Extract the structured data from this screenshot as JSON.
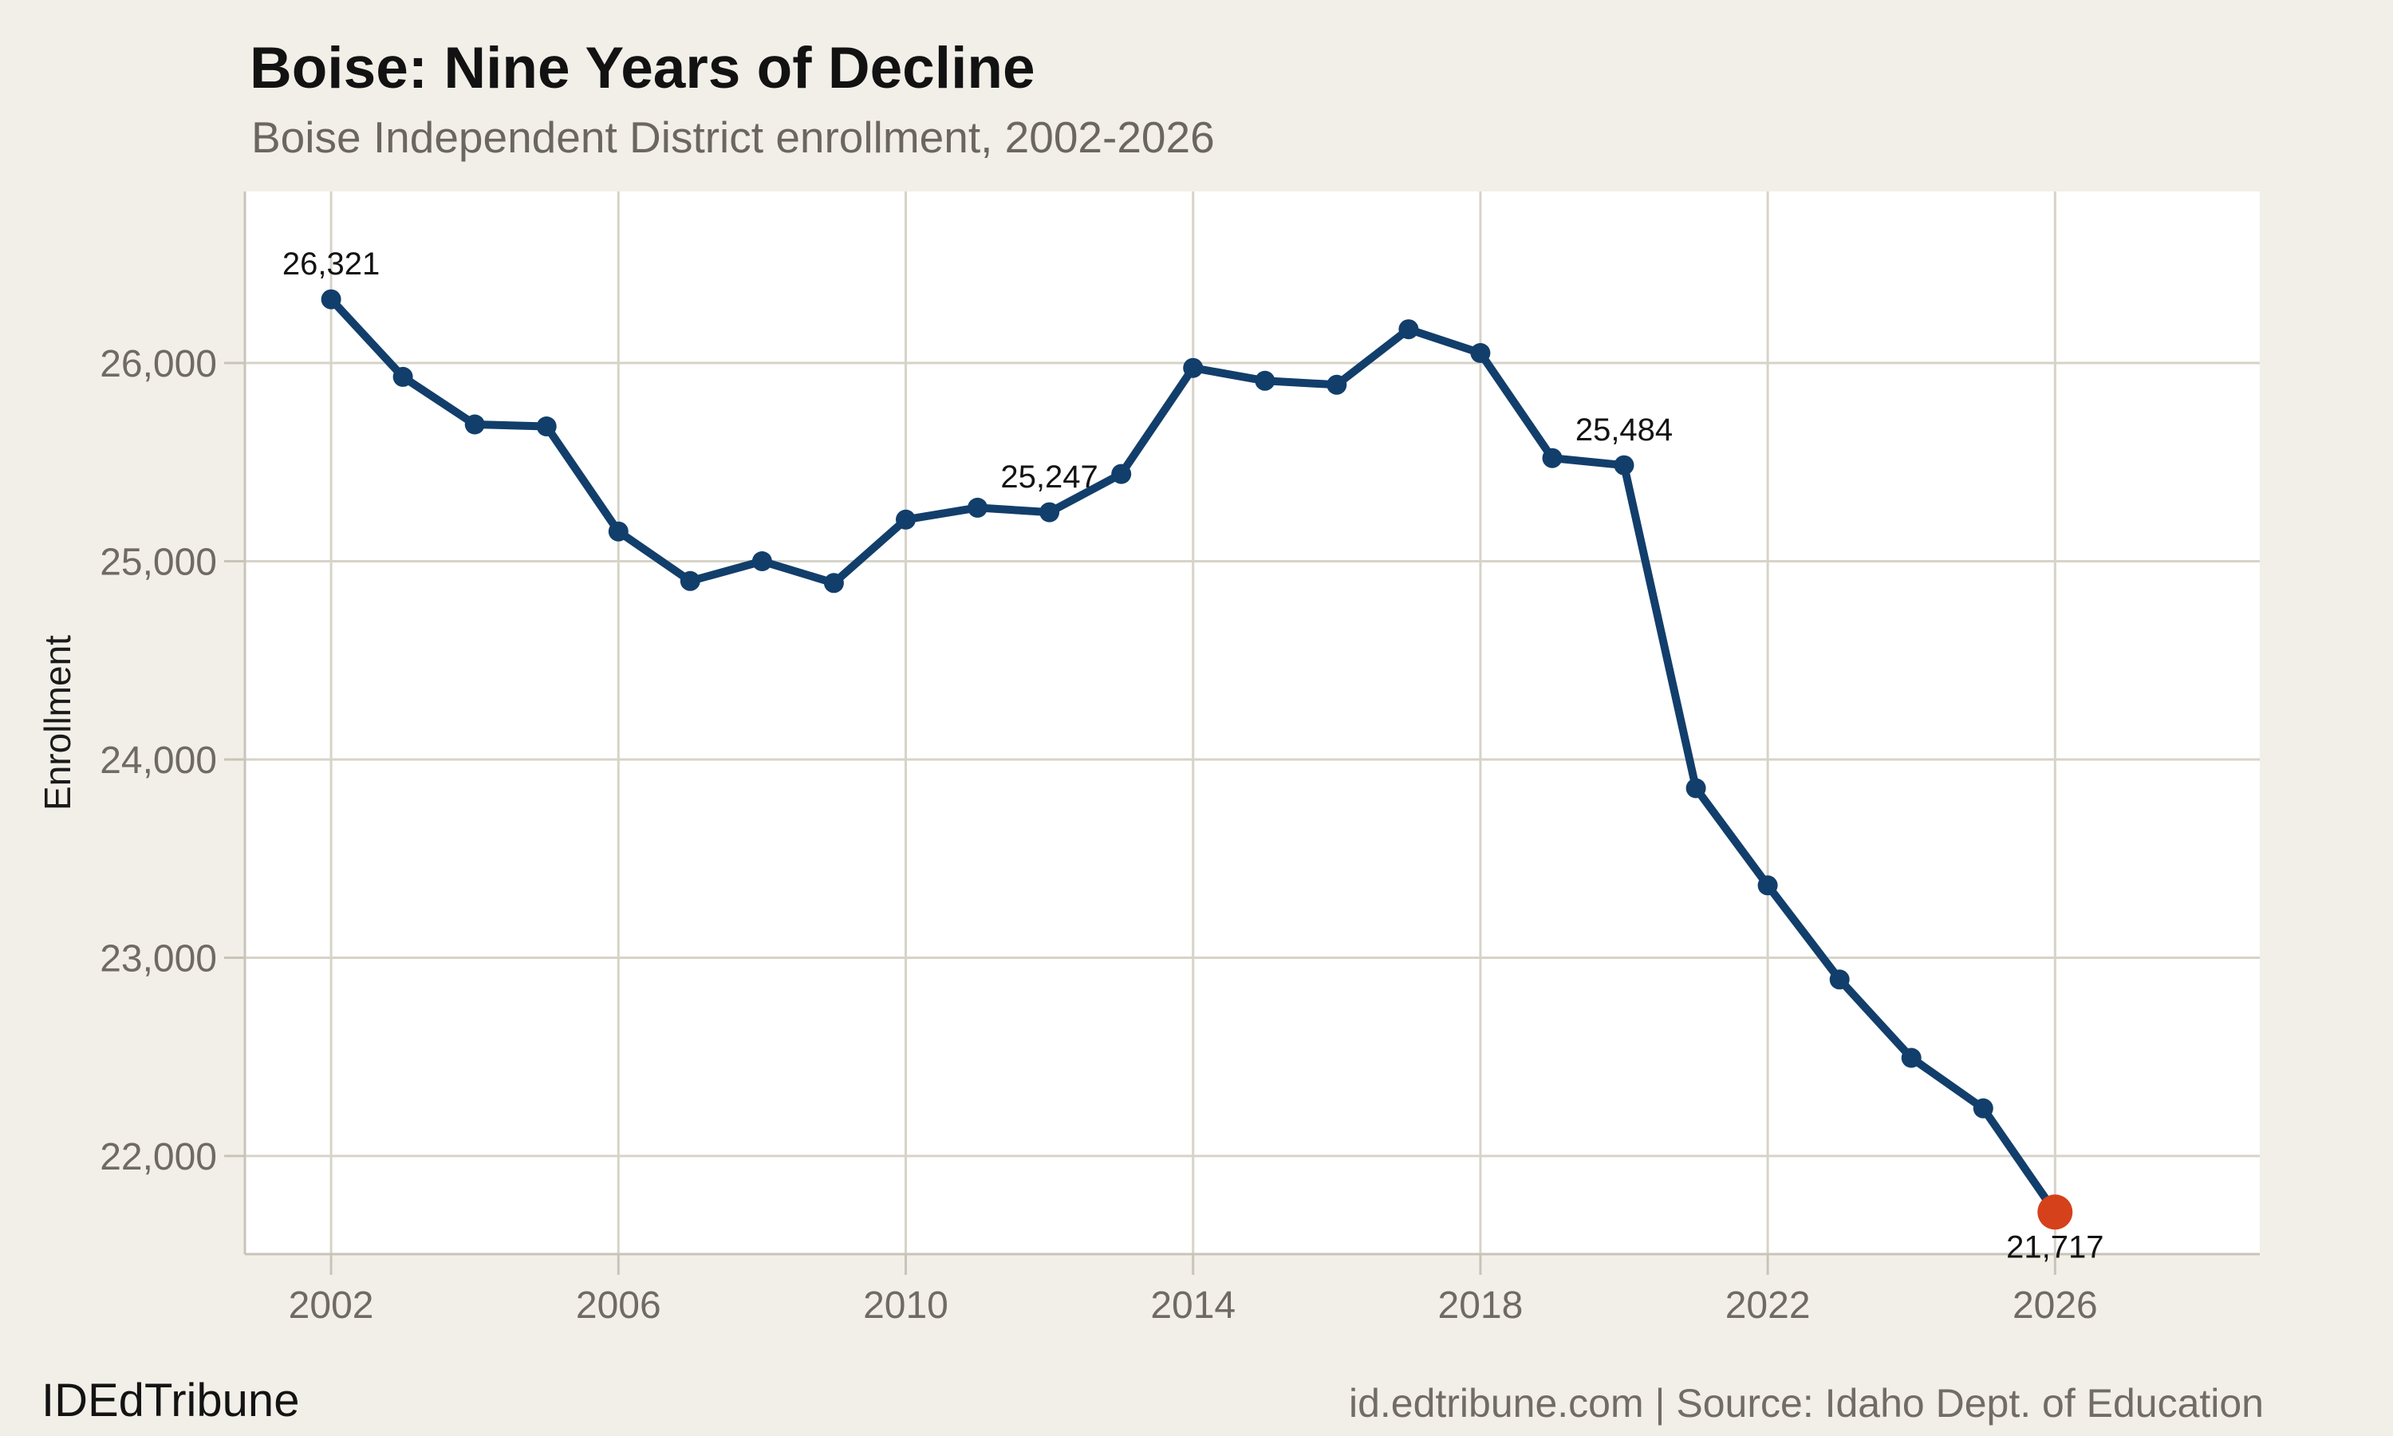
{
  "header": {
    "title": "Boise: Nine Years of Decline",
    "subtitle": "Boise Independent District enrollment, 2002-2026"
  },
  "footer": {
    "brand": "IDEdTribune",
    "credit": "id.edtribune.com | Source: Idaho Dept. of Education"
  },
  "chart_data": {
    "type": "line",
    "title": "Boise: Nine Years of Decline",
    "subtitle": "Boise Independent District enrollment, 2002-2026",
    "xlabel": "",
    "ylabel": "Enrollment",
    "x": [
      2002,
      2003,
      2004,
      2005,
      2006,
      2007,
      2008,
      2009,
      2010,
      2011,
      2012,
      2013,
      2014,
      2015,
      2016,
      2017,
      2018,
      2019,
      2020,
      2021,
      2022,
      2023,
      2024,
      2025,
      2026
    ],
    "series": [
      {
        "name": "Boise Independent District enrollment",
        "values": [
          26321,
          25930,
          25690,
          25680,
          25150,
          24900,
          25000,
          24890,
          25210,
          25270,
          25247,
          25440,
          25975,
          25910,
          25890,
          26170,
          26050,
          25520,
          25484,
          23855,
          23365,
          22890,
          22495,
          22240,
          21717
        ]
      }
    ],
    "x_ticks": [
      {
        "value": 2002,
        "label": "2002"
      },
      {
        "value": 2006,
        "label": "2006"
      },
      {
        "value": 2010,
        "label": "2010"
      },
      {
        "value": 2014,
        "label": "2014"
      },
      {
        "value": 2018,
        "label": "2018"
      },
      {
        "value": 2022,
        "label": "2022"
      },
      {
        "value": 2026,
        "label": "2026"
      }
    ],
    "y_ticks": [
      {
        "value": 22000,
        "label": "22,000"
      },
      {
        "value": 23000,
        "label": "23,000"
      },
      {
        "value": 24000,
        "label": "24,000"
      },
      {
        "value": 25000,
        "label": "25,000"
      },
      {
        "value": 26000,
        "label": "26,000"
      }
    ],
    "xlim": [
      2000.8,
      2028.85
    ],
    "ylim": [
      21505,
      26865
    ],
    "grid": true,
    "legend": false,
    "annotations": [
      {
        "x": 2002,
        "label": "26,321",
        "placement": "above"
      },
      {
        "x": 2012,
        "label": "25,247",
        "placement": "above"
      },
      {
        "x": 2020,
        "label": "25,484",
        "placement": "above"
      },
      {
        "x": 2026,
        "label": "21,717",
        "placement": "below"
      }
    ],
    "colors": {
      "line": "#123e6b",
      "point": "#123e6b",
      "last_point": "#d5411b",
      "grid": "#d7d3c8",
      "axis": "#c9c4b8",
      "tick_text": "#6f6b63",
      "annotation_text": "#131313",
      "plot_background": "#ffffff",
      "page_background": "#f2efe8"
    },
    "last_point_highlighted": true
  }
}
